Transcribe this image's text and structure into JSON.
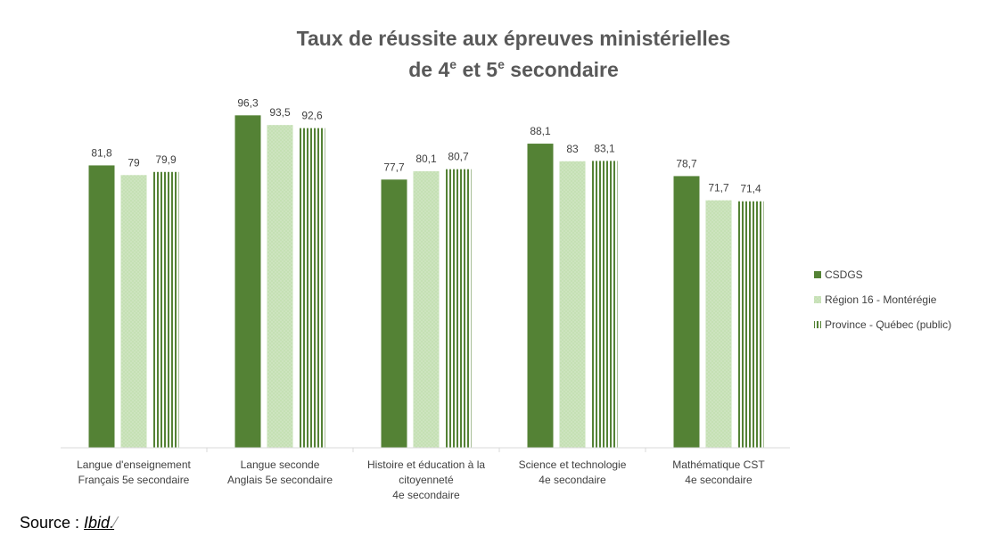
{
  "chart_data": {
    "type": "bar",
    "title_main": "Taux de réussite aux épreuves ministérielles",
    "title_line2": {
      "pre": "de 4",
      "sup1": "e",
      "mid": " et 5",
      "sup2": "e",
      "post": " secondaire"
    },
    "categories": [
      [
        "Langue d'enseignement",
        "Français 5e secondaire"
      ],
      [
        "Langue seconde",
        "Anglais 5e secondaire"
      ],
      [
        "Histoire et éducation à la",
        "citoyenneté",
        "4e secondaire"
      ],
      [
        "Science et technologie",
        "4e secondaire"
      ],
      [
        "Mathématique CST",
        "4e secondaire"
      ]
    ],
    "series": [
      {
        "name": "CSDGS",
        "values": [
          81.8,
          96.3,
          77.7,
          88.1,
          78.7
        ],
        "labels": [
          "81,8",
          "96,3",
          "77,7",
          "88,1",
          "78,7"
        ],
        "color": "#548235"
      },
      {
        "name": "Région 16 - Montérégie",
        "values": [
          79,
          93.5,
          80.1,
          83,
          71.7
        ],
        "labels": [
          "79",
          "93,5",
          "80,1",
          "83",
          "71,7"
        ],
        "color": "#c5e0b4"
      },
      {
        "name": "Province - Québec (public)",
        "values": [
          79.9,
          92.6,
          80.7,
          83.1,
          71.4
        ],
        "labels": [
          "79,9",
          "92,6",
          "80,7",
          "83,1",
          "71,4"
        ],
        "color": "#548235"
      }
    ],
    "ylim": [
      0,
      100
    ],
    "legend_position": "right",
    "grid": false
  },
  "source": {
    "prefix": "Source : ",
    "ref": "Ibid."
  }
}
